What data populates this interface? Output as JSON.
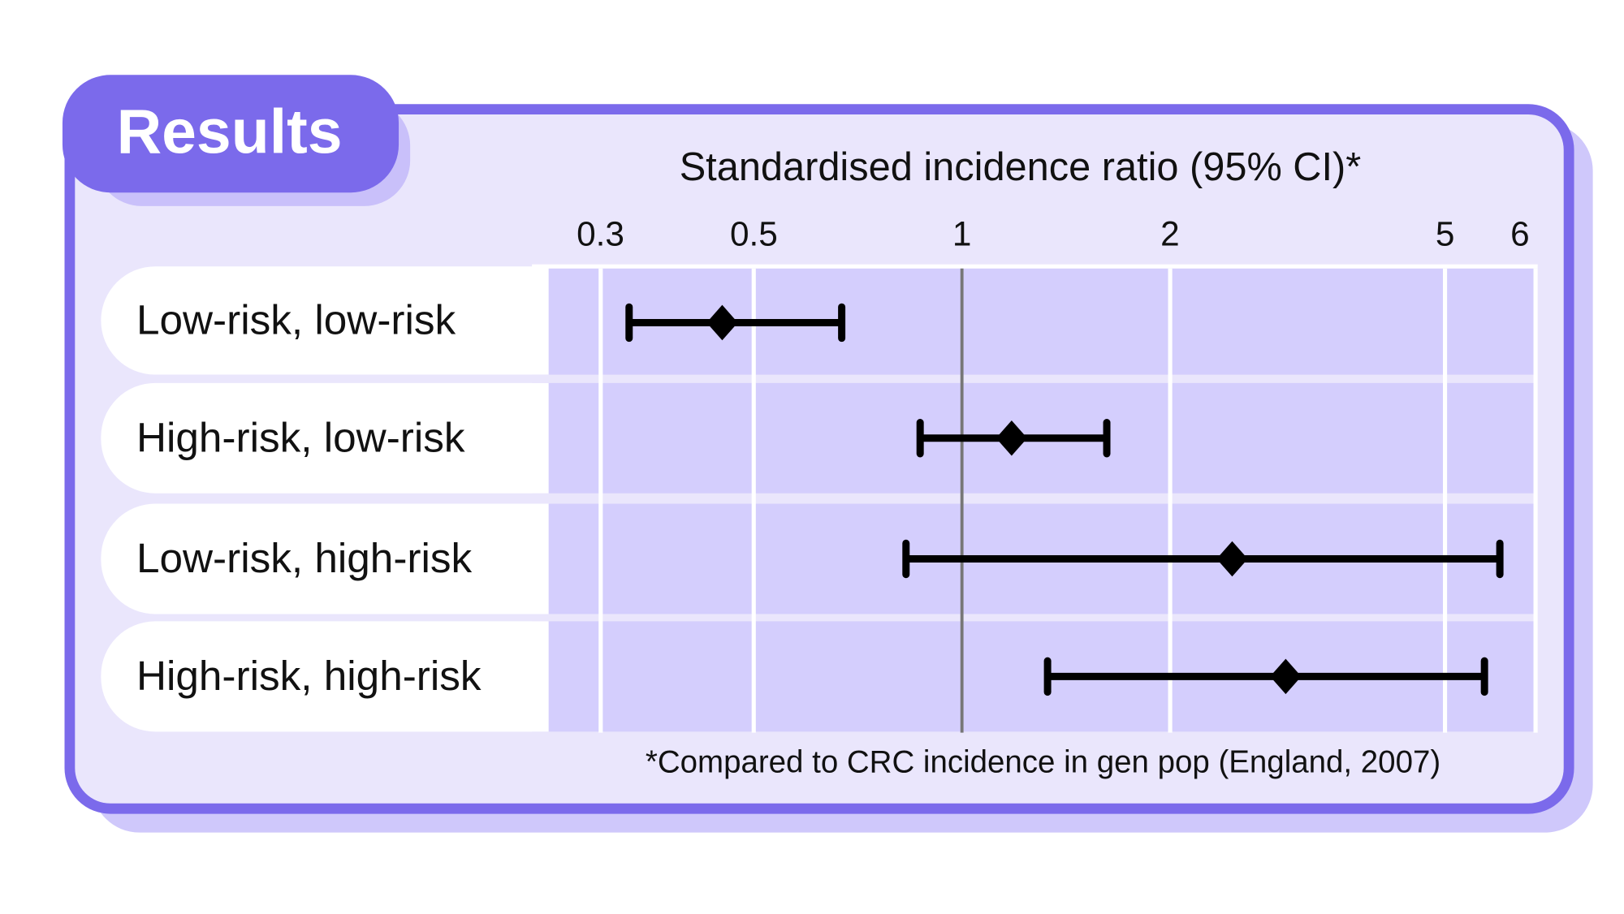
{
  "header": {
    "tab_label": "Results"
  },
  "colors": {
    "accent": "#7B6AEB",
    "panel": "#EAE6FC",
    "band": "#D4CEFD",
    "marker": "#000000",
    "reference_line": "#777777"
  },
  "chart_data": {
    "type": "forest",
    "title": "Standardised incidence ratio (95% CI)*",
    "xscale": "log",
    "xlim": [
      0.24,
      6.8
    ],
    "reference_value": 1,
    "ticks": [
      {
        "value": 0.3,
        "label": "0.3"
      },
      {
        "value": 0.5,
        "label": "0.5"
      },
      {
        "value": 1,
        "label": "1"
      },
      {
        "value": 2,
        "label": "2"
      },
      {
        "value": 5,
        "label": "5"
      },
      {
        "value": 6,
        "label": "6"
      }
    ],
    "rows": [
      {
        "label": "Low-risk, low-risk",
        "estimate": 0.45,
        "lower": 0.33,
        "upper": 0.67
      },
      {
        "label": "High-risk, low-risk",
        "estimate": 1.18,
        "lower": 0.87,
        "upper": 1.62
      },
      {
        "label": "Low-risk, high-risk",
        "estimate": 2.46,
        "lower": 0.83,
        "upper": 6.0
      },
      {
        "label": "High-risk, high-risk",
        "estimate": 2.94,
        "lower": 1.33,
        "upper": 5.7
      }
    ],
    "footnote": "*Compared to CRC incidence in gen pop (England, 2007)"
  }
}
